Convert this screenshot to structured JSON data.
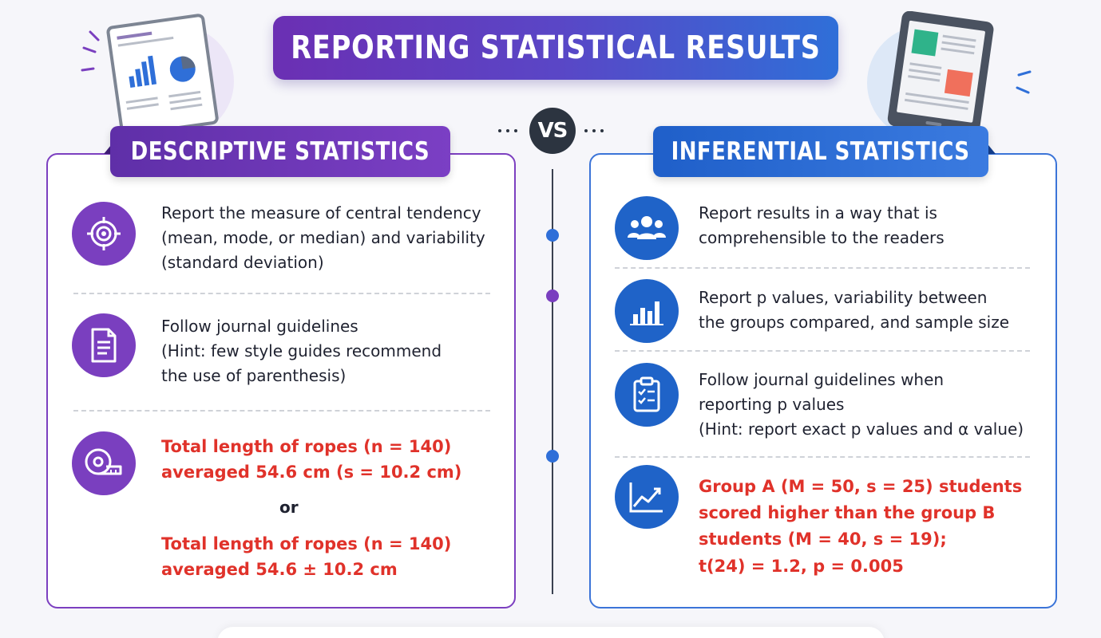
{
  "title": "REPORTING STATISTICAL RESULTS",
  "vs": "VS",
  "left": {
    "heading": "DESCRIPTIVE STATISTICS",
    "items": [
      {
        "icon": "target-icon",
        "lines": [
          "Report the measure of central tendency",
          "(mean, mode, or median) and variability",
          "(standard deviation)"
        ]
      },
      {
        "icon": "document-icon",
        "lines": [
          "Follow journal guidelines",
          "(Hint: few style guides recommend",
          "the use of parenthesis)"
        ]
      },
      {
        "icon": "measuring-tape-icon",
        "example_a": [
          "Total length of ropes (n = 140)",
          "averaged 54.6 cm (s = 10.2 cm)"
        ],
        "or": "or",
        "example_b": [
          "Total length of ropes (n = 140)",
          "averaged 54.6 ± 10.2 cm"
        ]
      }
    ]
  },
  "right": {
    "heading": "INFERENTIAL STATISTICS",
    "items": [
      {
        "icon": "people-icon",
        "lines": [
          "Report results in a way that is",
          "comprehensible to the readers"
        ]
      },
      {
        "icon": "bar-chart-icon",
        "lines": [
          "Report p values, variability between",
          "the groups compared, and sample size"
        ]
      },
      {
        "icon": "clipboard-checklist-icon",
        "lines": [
          "Follow journal guidelines when",
          "reporting p values",
          "(Hint: report exact p values and α value)"
        ]
      },
      {
        "icon": "trend-line-icon",
        "lines": [
          "Group A (M = 50, s = 25) students",
          "scored higher than the group B",
          "students (M = 40, s = 19);",
          "t(24) = 1.2, p = 0.005"
        ]
      }
    ]
  },
  "colors": {
    "purple": "#7a3fbf",
    "blue": "#1f63c8",
    "example_red": "#e0322a",
    "dark": "#2c3440"
  }
}
